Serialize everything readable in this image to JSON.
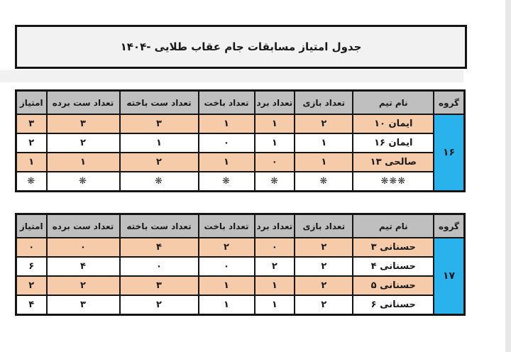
{
  "title": "جدول امتیاز مسابقات جام عقاب طلایی -۱۴۰۴",
  "colors": {
    "group_blue": "#29b2ec",
    "row_orange": "#f6cba9",
    "header_gray": "#bfbfbf",
    "title_fill": "#f2f2f2",
    "border_black": "#141414"
  },
  "table_headers": [
    "گروه",
    "نام تیم",
    "تعداد بازی",
    "تعداد برد",
    "تعداد باخت",
    "تعداد ست باخته",
    "تعداد ست برده",
    "امتیاز"
  ],
  "tables": [
    {
      "group": "۱۶",
      "rows": [
        {
          "team": "ایمان ۱۰",
          "played": "۲",
          "won": "۱",
          "lost": "۱",
          "sets_lost": "۳",
          "sets_won": "۳",
          "points": "۳",
          "highlight": true
        },
        {
          "team": "ایمان ۱۶",
          "played": "۱",
          "won": "۱",
          "lost": "۰",
          "sets_lost": "۱",
          "sets_won": "۲",
          "points": "۲",
          "highlight": false
        },
        {
          "team": "صالحی ۱۳",
          "played": "۱",
          "won": "۰",
          "lost": "۱",
          "sets_lost": "۲",
          "sets_won": "۱",
          "points": "۱",
          "highlight": true
        },
        {
          "team": "❋❋❋",
          "played": "❋",
          "won": "❋",
          "lost": "❋",
          "sets_lost": "❋",
          "sets_won": "❋",
          "points": "❋",
          "highlight": false
        }
      ]
    },
    {
      "group": "۱۷",
      "rows": [
        {
          "team": "حسنانی ۳",
          "played": "۲",
          "won": "۰",
          "lost": "۲",
          "sets_lost": "۴",
          "sets_won": "۰",
          "points": "۰",
          "highlight": true
        },
        {
          "team": "حسنانی ۴",
          "played": "۲",
          "won": "۲",
          "lost": "۰",
          "sets_lost": "۰",
          "sets_won": "۴",
          "points": "۶",
          "highlight": false
        },
        {
          "team": "حسنانی ۵",
          "played": "۲",
          "won": "۱",
          "lost": "۱",
          "sets_lost": "۳",
          "sets_won": "۲",
          "points": "۲",
          "highlight": true
        },
        {
          "team": "حسنانی ۶",
          "played": "۲",
          "won": "۱",
          "lost": "۱",
          "sets_lost": "۲",
          "sets_won": "۳",
          "points": "۴",
          "highlight": false
        }
      ]
    }
  ]
}
